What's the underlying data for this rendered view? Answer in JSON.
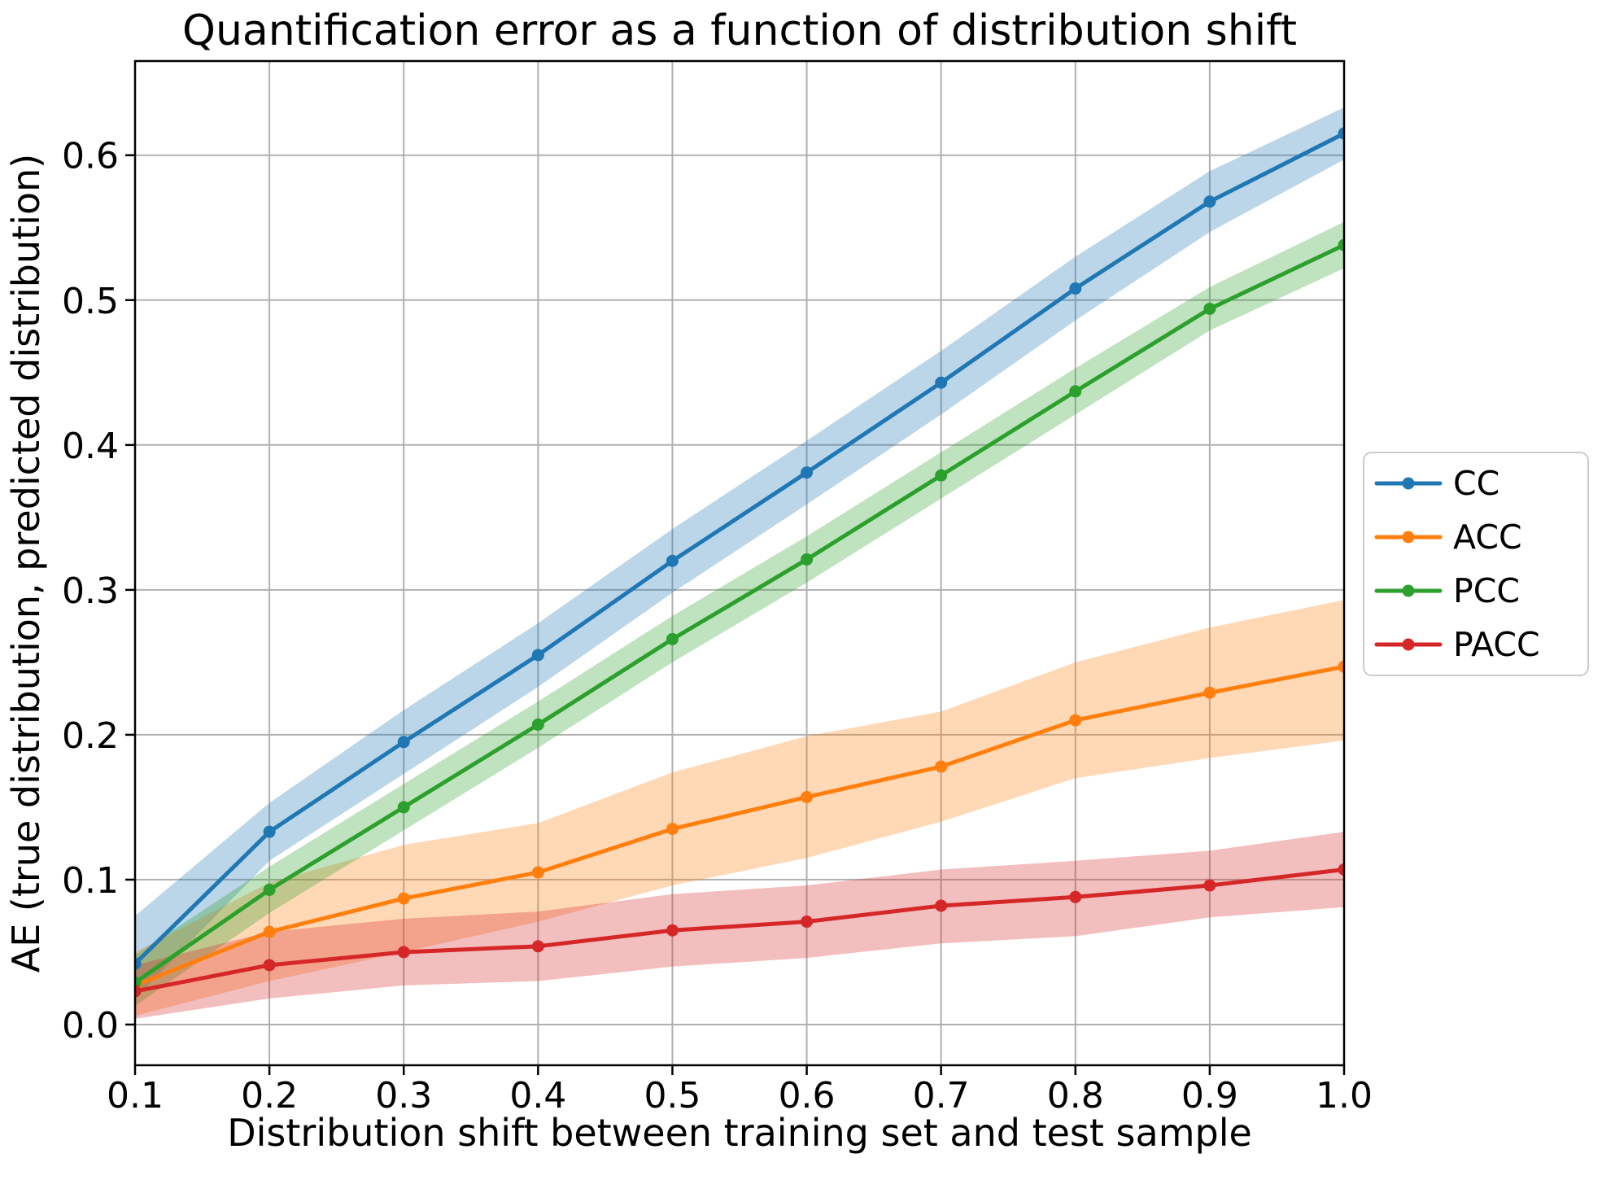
{
  "figure": {
    "title": "Quantification error as a function of distribution shift",
    "xlabel": "Distribution shift between training set and test sample",
    "ylabel": "AE (true distribution, predicted distribution)"
  },
  "chart_data": {
    "type": "line",
    "title": "Quantification error as a function of distribution shift",
    "xlabel": "Distribution shift between training set and test sample",
    "ylabel": "AE (true distribution, predicted distribution)",
    "grid": true,
    "legend_position": "right-outside",
    "band_alpha": 0.3,
    "xlim": [
      0.1,
      1.0
    ],
    "ylim": [
      -0.0281,
      0.665
    ],
    "x": [
      0.1,
      0.2,
      0.3,
      0.4,
      0.5,
      0.6,
      0.7,
      0.8,
      0.9,
      1.0
    ],
    "x_tick_labels": [
      "0.1",
      "0.2",
      "0.3",
      "0.4",
      "0.5",
      "0.6",
      "0.7",
      "0.8",
      "0.9",
      "1.0"
    ],
    "y_ticks": [
      0.0,
      0.1,
      0.2,
      0.3,
      0.4,
      0.5,
      0.6
    ],
    "y_tick_labels": [
      "0.0",
      "0.1",
      "0.2",
      "0.3",
      "0.4",
      "0.5",
      "0.6"
    ],
    "series": [
      {
        "name": "CC",
        "color": "#1f77b4",
        "values": [
          0.042,
          0.133,
          0.195,
          0.255,
          0.32,
          0.381,
          0.443,
          0.508,
          0.568,
          0.615
        ],
        "band_lower": [
          0.018,
          0.113,
          0.173,
          0.233,
          0.298,
          0.359,
          0.421,
          0.486,
          0.547,
          0.597
        ],
        "band_upper": [
          0.075,
          0.153,
          0.217,
          0.277,
          0.342,
          0.403,
          0.465,
          0.53,
          0.589,
          0.633
        ]
      },
      {
        "name": "ACC",
        "color": "#ff7f0e",
        "values": [
          0.027,
          0.064,
          0.087,
          0.105,
          0.135,
          0.157,
          0.178,
          0.21,
          0.229,
          0.247
        ],
        "band_lower": [
          0.006,
          0.03,
          0.05,
          0.071,
          0.096,
          0.115,
          0.14,
          0.17,
          0.184,
          0.196
        ],
        "band_upper": [
          0.05,
          0.098,
          0.124,
          0.139,
          0.174,
          0.199,
          0.216,
          0.25,
          0.274,
          0.293
        ]
      },
      {
        "name": "PCC",
        "color": "#2ca02c",
        "values": [
          0.029,
          0.093,
          0.15,
          0.207,
          0.266,
          0.321,
          0.379,
          0.437,
          0.494,
          0.538
        ],
        "band_lower": [
          0.013,
          0.077,
          0.134,
          0.191,
          0.25,
          0.305,
          0.363,
          0.421,
          0.479,
          0.522
        ],
        "band_upper": [
          0.048,
          0.109,
          0.166,
          0.223,
          0.282,
          0.337,
          0.395,
          0.453,
          0.509,
          0.554
        ]
      },
      {
        "name": "PACC",
        "color": "#d62728",
        "values": [
          0.023,
          0.041,
          0.05,
          0.054,
          0.065,
          0.071,
          0.082,
          0.088,
          0.096,
          0.107
        ],
        "band_lower": [
          0.004,
          0.018,
          0.027,
          0.03,
          0.04,
          0.046,
          0.056,
          0.061,
          0.074,
          0.081
        ],
        "band_upper": [
          0.041,
          0.064,
          0.073,
          0.078,
          0.09,
          0.096,
          0.107,
          0.113,
          0.12,
          0.133
        ]
      }
    ]
  },
  "style": {
    "grid_color": "#b0b0b0",
    "spine_color": "#000000",
    "background_color": "#ffffff",
    "legend_border_color": "#cccccc",
    "text_color": "#000000"
  }
}
